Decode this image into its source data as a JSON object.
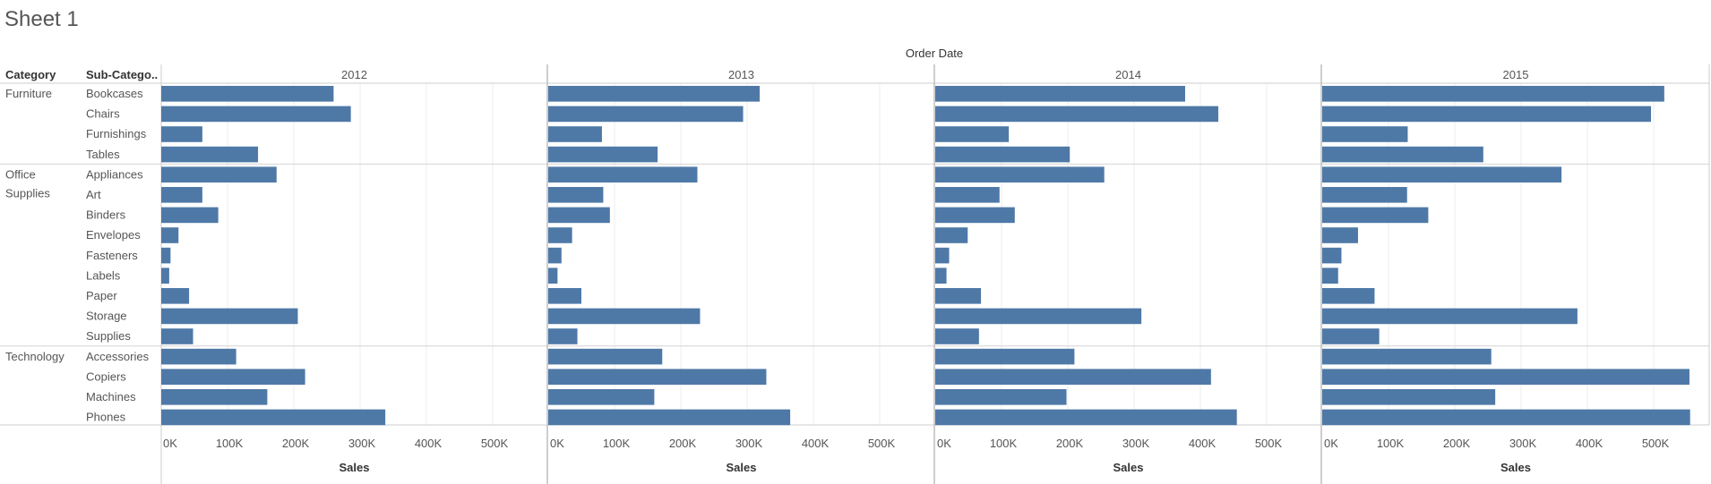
{
  "sheet": {
    "title": "Sheet 1"
  },
  "chart_data": {
    "type": "bar",
    "orientation": "horizontal",
    "column_header": "Order Date",
    "row_headers": [
      "Category",
      "Sub-Catego.."
    ],
    "columns": [
      "2012",
      "2013",
      "2014",
      "2015"
    ],
    "xlabel": "Sales",
    "xlim": [
      0,
      580000
    ],
    "xticks": [
      0,
      100000,
      200000,
      300000,
      400000,
      500000
    ],
    "xtick_labels": [
      "0K",
      "100K",
      "200K",
      "300K",
      "400K",
      "500K"
    ],
    "bar_color": "#4e79a7",
    "grid": true,
    "groups": [
      {
        "category": "Furniture",
        "category_lines": [
          "Furniture"
        ],
        "subcategories": [
          "Bookcases",
          "Chairs",
          "Furnishings",
          "Tables"
        ]
      },
      {
        "category": "Office Supplies",
        "category_lines": [
          "Office",
          "Supplies"
        ],
        "subcategories": [
          "Appliances",
          "Art",
          "Binders",
          "Envelopes",
          "Fasteners",
          "Labels",
          "Paper",
          "Storage",
          "Supplies"
        ]
      },
      {
        "category": "Technology",
        "category_lines": [
          "Technology"
        ],
        "subcategories": [
          "Accessories",
          "Copiers",
          "Machines",
          "Phones"
        ]
      }
    ],
    "values": {
      "2012": [
        260000,
        286000,
        62000,
        146000,
        174000,
        62000,
        86000,
        26000,
        14000,
        12000,
        42000,
        206000,
        48000,
        113000,
        217000,
        160000,
        338000
      ],
      "2013": [
        319000,
        294000,
        81000,
        165000,
        225000,
        83000,
        93000,
        36000,
        20000,
        14000,
        50000,
        229000,
        44000,
        172000,
        329000,
        160000,
        365000
      ],
      "2014": [
        377000,
        427000,
        111000,
        203000,
        255000,
        97000,
        120000,
        49000,
        21000,
        17000,
        69000,
        311000,
        66000,
        210000,
        416000,
        198000,
        455000
      ],
      "2015": [
        516000,
        496000,
        129000,
        243000,
        361000,
        128000,
        160000,
        54000,
        29000,
        24000,
        79000,
        385000,
        86000,
        255000,
        554000,
        261000,
        555000
      ]
    }
  }
}
